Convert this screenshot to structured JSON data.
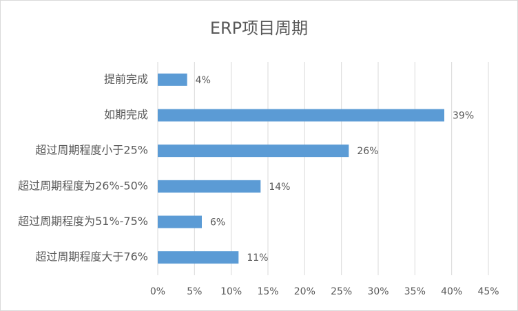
{
  "chart_data": {
    "type": "bar",
    "orientation": "horizontal",
    "title": "ERP项目周期",
    "categories": [
      "提前完成",
      "如期完成",
      "超过周期程度小于25%",
      "超过周期程度为26%-50%",
      "超过周期程度为51%-75%",
      "超过周期程度大于76%"
    ],
    "values": [
      4,
      39,
      26,
      14,
      6,
      11
    ],
    "value_labels": [
      "4%",
      "39%",
      "26%",
      "14%",
      "6%",
      "11%"
    ],
    "color": "#5b9bd5",
    "xlim": [
      0,
      45
    ],
    "xticks": [
      {
        "value": 0,
        "label": "0%"
      },
      {
        "value": 5,
        "label": "5%"
      },
      {
        "value": 10,
        "label": "10%"
      },
      {
        "value": 15,
        "label": "15%"
      },
      {
        "value": 20,
        "label": "20%"
      },
      {
        "value": 25,
        "label": "25%"
      },
      {
        "value": 30,
        "label": "30%"
      },
      {
        "value": 35,
        "label": "35%"
      },
      {
        "value": 40,
        "label": "40%"
      },
      {
        "value": 45,
        "label": "45%"
      }
    ],
    "grid": true
  }
}
